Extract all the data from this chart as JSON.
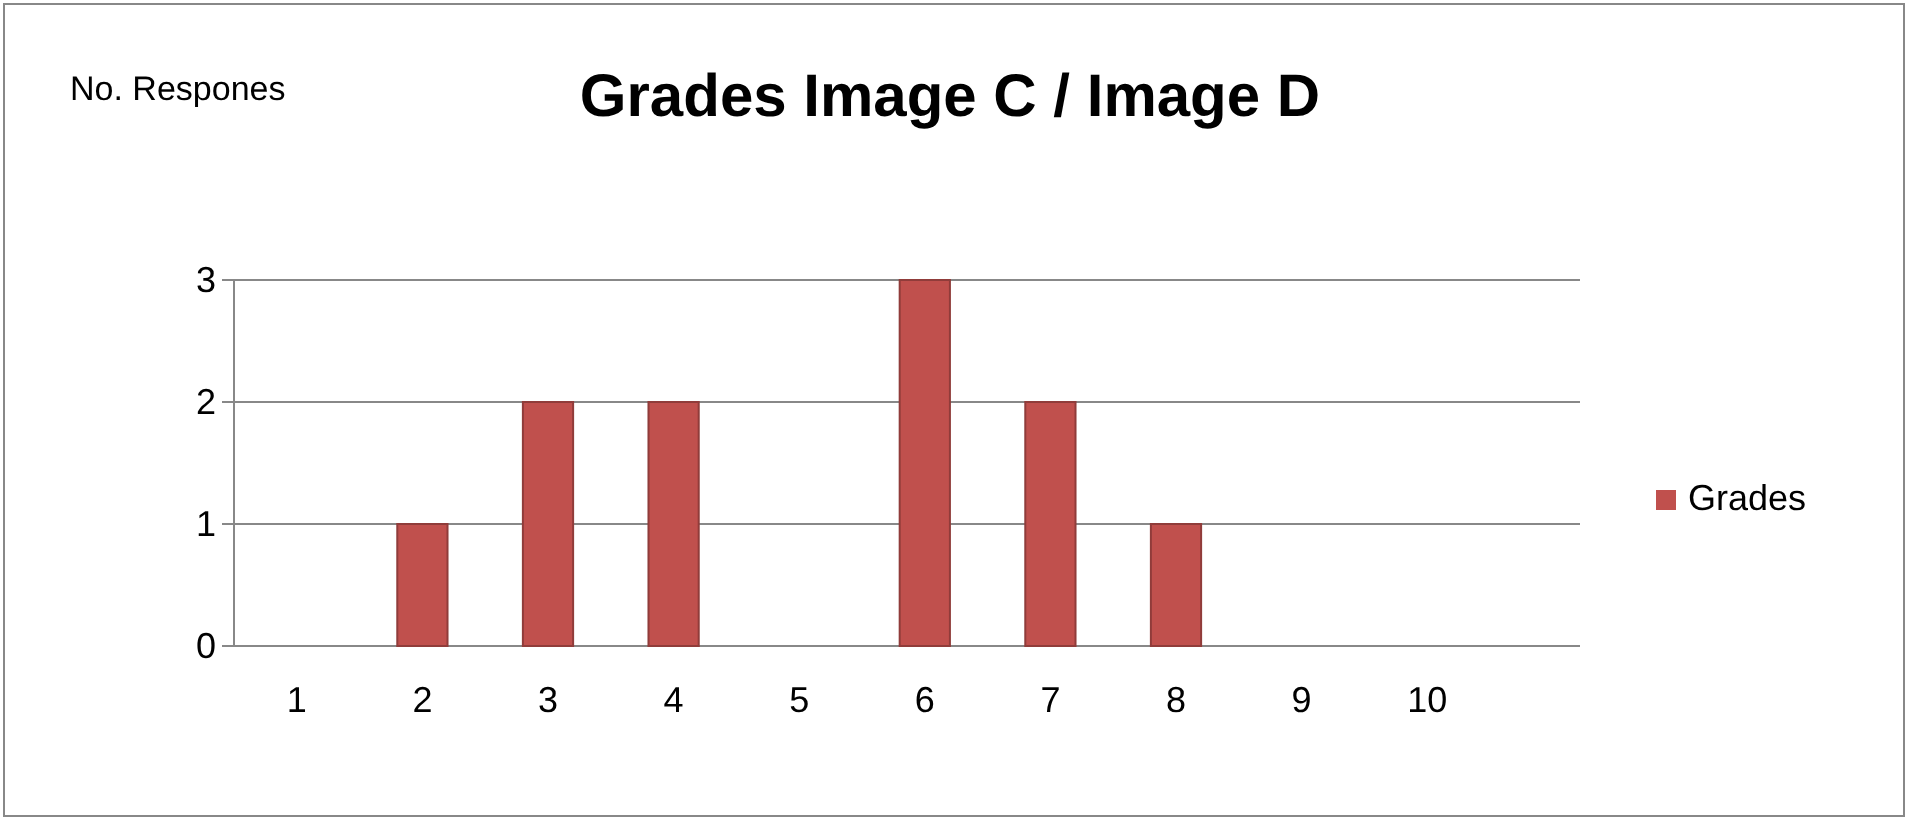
{
  "chart_data": {
    "type": "bar",
    "title": "Grades Image C / Image D",
    "ylabel": "No. Respones",
    "categories": [
      "1",
      "2",
      "3",
      "4",
      "5",
      "6",
      "7",
      "8",
      "9",
      "10"
    ],
    "series": [
      {
        "name": "Grades",
        "color": "#c0504d",
        "values": [
          0,
          1,
          2,
          2,
          0,
          3,
          2,
          1,
          0,
          0
        ]
      }
    ],
    "ylim": [
      0,
      3
    ],
    "yticks": [
      0,
      1,
      2,
      3
    ],
    "grid": "y",
    "legend": "right"
  }
}
